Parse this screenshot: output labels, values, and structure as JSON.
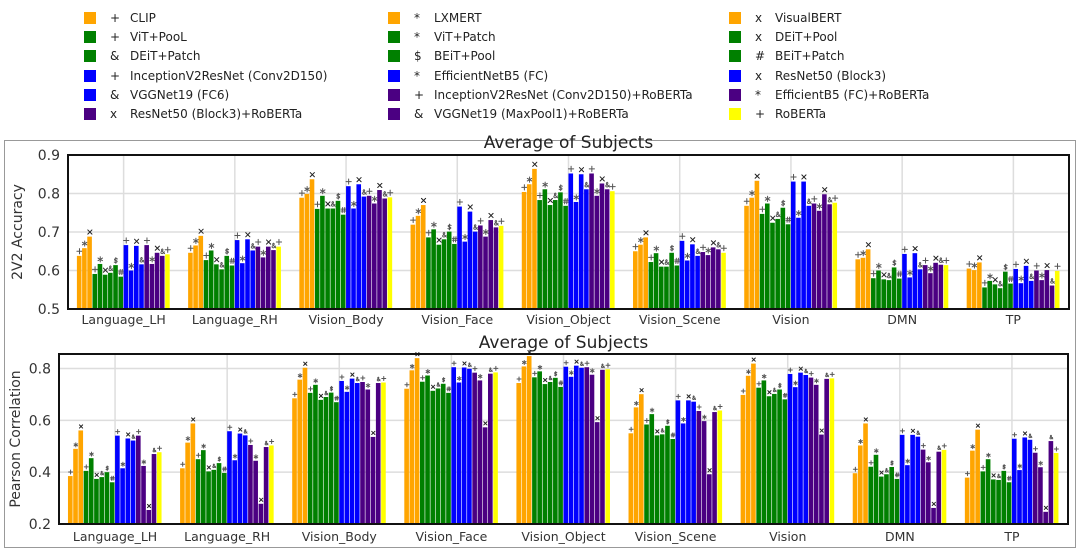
{
  "legend_markers_note": "",
  "chart_data": [
    {
      "type": "bar",
      "title": "Average of Subjects",
      "xlabel": "",
      "ylabel": "2V2 Accuracy",
      "ylim": [
        0.5,
        0.9
      ],
      "yticks": [
        "0.5",
        "0.6",
        "0.7",
        "0.8",
        "0.9"
      ],
      "grid": true,
      "categories": [
        "Language_LH",
        "Language_RH",
        "Vision_Body",
        "Vision_Face",
        "Vision_Object",
        "Vision_Scene",
        "Vision",
        "DMN",
        "TP"
      ],
      "series": [
        {
          "name": "CLIP",
          "marker": "+",
          "color": "#FFA500",
          "values": [
            0.638,
            0.646,
            0.789,
            0.719,
            0.804,
            0.65,
            0.768,
            0.629,
            0.605
          ]
        },
        {
          "name": "LXMERT",
          "marker": "*",
          "color": "#FFA500",
          "values": [
            0.658,
            0.665,
            0.799,
            0.742,
            0.824,
            0.667,
            0.789,
            0.633,
            0.601
          ]
        },
        {
          "name": "VisualBERT",
          "marker": "x",
          "color": "#FFA500",
          "values": [
            0.688,
            0.69,
            0.837,
            0.77,
            0.864,
            0.686,
            0.833,
            0.655,
            0.621
          ]
        },
        {
          "name": "ViT+PooL",
          "marker": "+",
          "color": "#008000",
          "values": [
            0.591,
            0.627,
            0.76,
            0.686,
            0.783,
            0.622,
            0.747,
            0.58,
            0.556
          ]
        },
        {
          "name": "ViT+Patch",
          "marker": "*",
          "color": "#008000",
          "values": [
            0.617,
            0.652,
            0.794,
            0.707,
            0.811,
            0.645,
            0.774,
            0.6,
            0.573
          ]
        },
        {
          "name": "DEiT+Pool",
          "marker": "x",
          "color": "#008000",
          "values": [
            0.589,
            0.616,
            0.761,
            0.667,
            0.77,
            0.61,
            0.724,
            0.577,
            0.564
          ]
        },
        {
          "name": "DEiT+Patch",
          "marker": "&",
          "color": "#008000",
          "values": [
            0.594,
            0.603,
            0.761,
            0.681,
            0.783,
            0.61,
            0.734,
            0.575,
            0.554
          ]
        },
        {
          "name": "BEiT+Pool",
          "marker": "$",
          "color": "#008000",
          "values": [
            0.614,
            0.638,
            0.781,
            0.701,
            0.803,
            0.646,
            0.763,
            0.608,
            0.597
          ]
        },
        {
          "name": "BEiT+Patch",
          "marker": "#",
          "color": "#008000",
          "values": [
            0.584,
            0.613,
            0.745,
            0.669,
            0.768,
            0.613,
            0.72,
            0.579,
            0.566
          ]
        },
        {
          "name": "InceptionV2ResNet (Conv2D150)",
          "marker": "+",
          "color": "#0000FF",
          "values": [
            0.666,
            0.679,
            0.819,
            0.766,
            0.852,
            0.677,
            0.831,
            0.643,
            0.604
          ]
        },
        {
          "name": "EfficientNetB5 (FC)",
          "marker": "*",
          "color": "#0000FF",
          "values": [
            0.6,
            0.619,
            0.761,
            0.675,
            0.778,
            0.626,
            0.737,
            0.582,
            0.567
          ]
        },
        {
          "name": "ResNet50 (Block3)",
          "marker": "x",
          "color": "#0000FF",
          "values": [
            0.664,
            0.681,
            0.824,
            0.753,
            0.85,
            0.668,
            0.831,
            0.645,
            0.612
          ]
        },
        {
          "name": "VGGNet19 (FC6)",
          "marker": "&",
          "color": "#0000FF",
          "values": [
            0.616,
            0.652,
            0.792,
            0.701,
            0.811,
            0.638,
            0.768,
            0.603,
            0.573
          ]
        },
        {
          "name": "InceptionV2ResNet (Conv2D150)+RoBERTa",
          "marker": "+",
          "color": "#4B0082",
          "values": [
            0.666,
            0.662,
            0.794,
            0.717,
            0.852,
            0.648,
            0.774,
            0.614,
            0.6
          ]
        },
        {
          "name": "EfficientB5 (FC)+RoBERTa",
          "marker": "*",
          "color": "#4B0082",
          "values": [
            0.617,
            0.634,
            0.774,
            0.688,
            0.794,
            0.64,
            0.755,
            0.593,
            0.575
          ]
        },
        {
          "name": "ResNet50 (Block3)+RoBERTa",
          "marker": "x",
          "color": "#4B0082",
          "values": [
            0.646,
            0.662,
            0.809,
            0.731,
            0.826,
            0.66,
            0.798,
            0.62,
            0.601
          ]
        },
        {
          "name": "VGGNet19 (MaxPool1)+RoBERTa",
          "marker": "&",
          "color": "#4B0082",
          "values": [
            0.638,
            0.653,
            0.787,
            0.712,
            0.811,
            0.655,
            0.772,
            0.615,
            0.561
          ]
        },
        {
          "name": "RoBERTa",
          "marker": "+",
          "color": "#FFFF00",
          "values": [
            0.642,
            0.662,
            0.79,
            0.716,
            0.806,
            0.646,
            0.776,
            0.614,
            0.599
          ]
        }
      ]
    },
    {
      "type": "bar",
      "title": "Average of Subjects",
      "xlabel": "",
      "ylabel": "Pearson Correlation",
      "ylim": [
        0.2,
        0.856
      ],
      "yticks": [
        "0.2",
        "0.4",
        "0.6",
        "0.8"
      ],
      "grid": true,
      "categories": [
        "Language_LH",
        "Language_RH",
        "Vision_Body",
        "Vision_Face",
        "Vision_Object",
        "Vision_Scene",
        "Vision",
        "DMN",
        "TP"
      ],
      "series": [
        {
          "name": "CLIP",
          "marker": "+",
          "color": "#FFA500",
          "values": [
            0.385,
            0.415,
            0.685,
            0.722,
            0.744,
            0.55,
            0.698,
            0.396,
            0.379
          ]
        },
        {
          "name": "LXMERT",
          "marker": "*",
          "color": "#FFA500",
          "values": [
            0.49,
            0.514,
            0.757,
            0.793,
            0.808,
            0.65,
            0.772,
            0.503,
            0.483
          ]
        },
        {
          "name": "VisualBERT",
          "marker": "x",
          "color": "#FFA500",
          "values": [
            0.561,
            0.588,
            0.803,
            0.84,
            0.848,
            0.701,
            0.819,
            0.588,
            0.564
          ]
        },
        {
          "name": "ViT+PooL",
          "marker": "+",
          "color": "#008000",
          "values": [
            0.405,
            0.45,
            0.706,
            0.749,
            0.766,
            0.584,
            0.726,
            0.421,
            0.403
          ]
        },
        {
          "name": "ViT+Patch",
          "marker": "*",
          "color": "#008000",
          "values": [
            0.454,
            0.485,
            0.737,
            0.773,
            0.789,
            0.624,
            0.754,
            0.467,
            0.45
          ]
        },
        {
          "name": "DEiT+Pool",
          "marker": "x",
          "color": "#008000",
          "values": [
            0.374,
            0.403,
            0.679,
            0.714,
            0.74,
            0.542,
            0.693,
            0.383,
            0.372
          ]
        },
        {
          "name": "DEiT+Patch",
          "marker": "&",
          "color": "#008000",
          "values": [
            0.381,
            0.409,
            0.69,
            0.723,
            0.748,
            0.546,
            0.702,
            0.392,
            0.37
          ]
        },
        {
          "name": "BEiT+Pool",
          "marker": "$",
          "color": "#008000",
          "values": [
            0.4,
            0.435,
            0.707,
            0.741,
            0.764,
            0.579,
            0.719,
            0.42,
            0.405
          ]
        },
        {
          "name": "BEiT+Patch",
          "marker": "#",
          "color": "#008000",
          "values": [
            0.361,
            0.397,
            0.67,
            0.706,
            0.729,
            0.528,
            0.681,
            0.374,
            0.361
          ]
        },
        {
          "name": "InceptionV2ResNet (Conv2D150)",
          "marker": "+",
          "color": "#0000FF",
          "values": [
            0.541,
            0.558,
            0.752,
            0.805,
            0.807,
            0.677,
            0.779,
            0.544,
            0.529
          ]
        },
        {
          "name": "EfficientNetB5 (FC)",
          "marker": "*",
          "color": "#0000FF",
          "values": [
            0.415,
            0.446,
            0.71,
            0.746,
            0.768,
            0.588,
            0.728,
            0.427,
            0.408
          ]
        },
        {
          "name": "ResNet50 (Block3)",
          "marker": "x",
          "color": "#0000FF",
          "values": [
            0.53,
            0.549,
            0.761,
            0.804,
            0.811,
            0.677,
            0.784,
            0.544,
            0.534
          ]
        },
        {
          "name": "VGGNet19 (FC6)",
          "marker": "&",
          "color": "#0000FF",
          "values": [
            0.522,
            0.542,
            0.744,
            0.799,
            0.803,
            0.672,
            0.775,
            0.537,
            0.525
          ]
        },
        {
          "name": "InceptionV2ResNet (Conv2D150)+RoBERTa",
          "marker": "+",
          "color": "#4B0082",
          "values": [
            0.541,
            0.505,
            0.748,
            0.784,
            0.805,
            0.636,
            0.765,
            0.487,
            0.475
          ]
        },
        {
          "name": "EfficientB5 (FC)+RoBERTa",
          "marker": "*",
          "color": "#4B0082",
          "values": [
            0.424,
            0.444,
            0.719,
            0.754,
            0.776,
            0.597,
            0.737,
            0.438,
            0.419
          ]
        },
        {
          "name": "ResNet50 (Block3)+RoBERTa",
          "marker": "x",
          "color": "#4B0082",
          "values": [
            0.254,
            0.278,
            0.536,
            0.573,
            0.593,
            0.392,
            0.545,
            0.262,
            0.247
          ]
        },
        {
          "name": "VGGNet19 (MaxPool1)+RoBERTa",
          "marker": "&",
          "color": "#4B0082",
          "values": [
            0.47,
            0.497,
            0.744,
            0.78,
            0.795,
            0.632,
            0.76,
            0.479,
            0.52
          ]
        },
        {
          "name": "RoBERTa",
          "marker": "+",
          "color": "#FFFF00",
          "values": [
            0.477,
            0.503,
            0.746,
            0.785,
            0.797,
            0.638,
            0.762,
            0.486,
            0.474
          ]
        }
      ]
    }
  ]
}
